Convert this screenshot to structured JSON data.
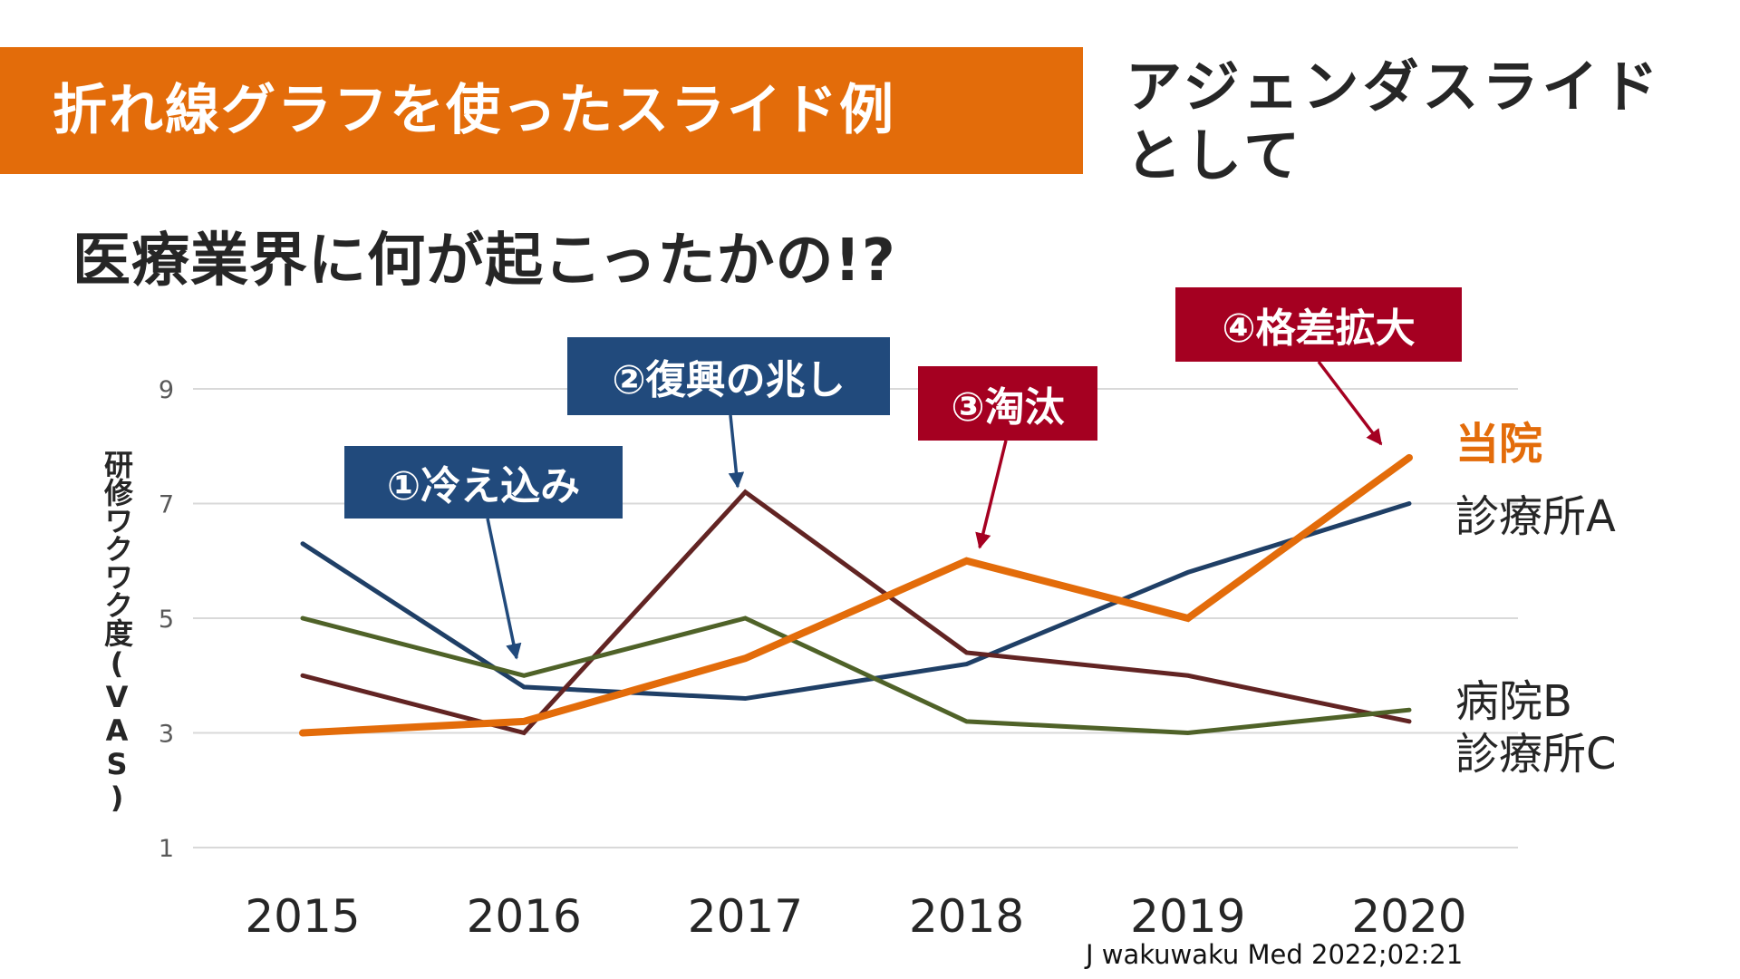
{
  "slide": {
    "title": "折れ線グラフを使ったスライド例",
    "side_note_lines": [
      "アジェンダスライド",
      "として"
    ],
    "subtitle": "医療業界に何が起こったかの!?",
    "source": "J wakuwaku Med 2022;02:21",
    "colors": {
      "title_bar": "#E36C0A",
      "annotation_blue": "#214A7C",
      "annotation_red": "#A50021"
    }
  },
  "annotations": [
    {
      "label": "①冷え込み",
      "color": "blue",
      "points_to_year": "2016"
    },
    {
      "label": "②復興の兆し",
      "color": "blue",
      "points_to_year": "2017"
    },
    {
      "label": "③淘汰",
      "color": "red",
      "points_to_year": "2018"
    },
    {
      "label": "④格差拡大",
      "color": "red",
      "points_to_year": "2020"
    }
  ],
  "chart_data": {
    "type": "line",
    "title": "",
    "xlabel": "",
    "ylabel": "研修ワクワク度(VAS)",
    "x": [
      "2015",
      "2016",
      "2017",
      "2018",
      "2019",
      "2020"
    ],
    "ylim": [
      1,
      9
    ],
    "yticks": [
      "1",
      "3",
      "5",
      "7",
      "9"
    ],
    "grid": true,
    "legend": "direct labels at right end of lines",
    "series": [
      {
        "name": "当院",
        "color": "#E36C0A",
        "emphasis": true,
        "values": [
          3.0,
          3.2,
          4.3,
          6.0,
          5.0,
          7.8
        ]
      },
      {
        "name": "診療所A",
        "color": "#1F3F66",
        "emphasis": false,
        "values": [
          6.3,
          3.8,
          3.6,
          4.2,
          5.8,
          7.0
        ]
      },
      {
        "name": "病院B",
        "color": "#622423",
        "emphasis": false,
        "values": [
          4.0,
          3.0,
          7.2,
          4.4,
          4.0,
          3.2
        ]
      },
      {
        "name": "診療所C",
        "color": "#4F6228",
        "emphasis": false,
        "values": [
          5.0,
          4.0,
          5.0,
          3.2,
          3.0,
          3.4
        ]
      }
    ]
  }
}
